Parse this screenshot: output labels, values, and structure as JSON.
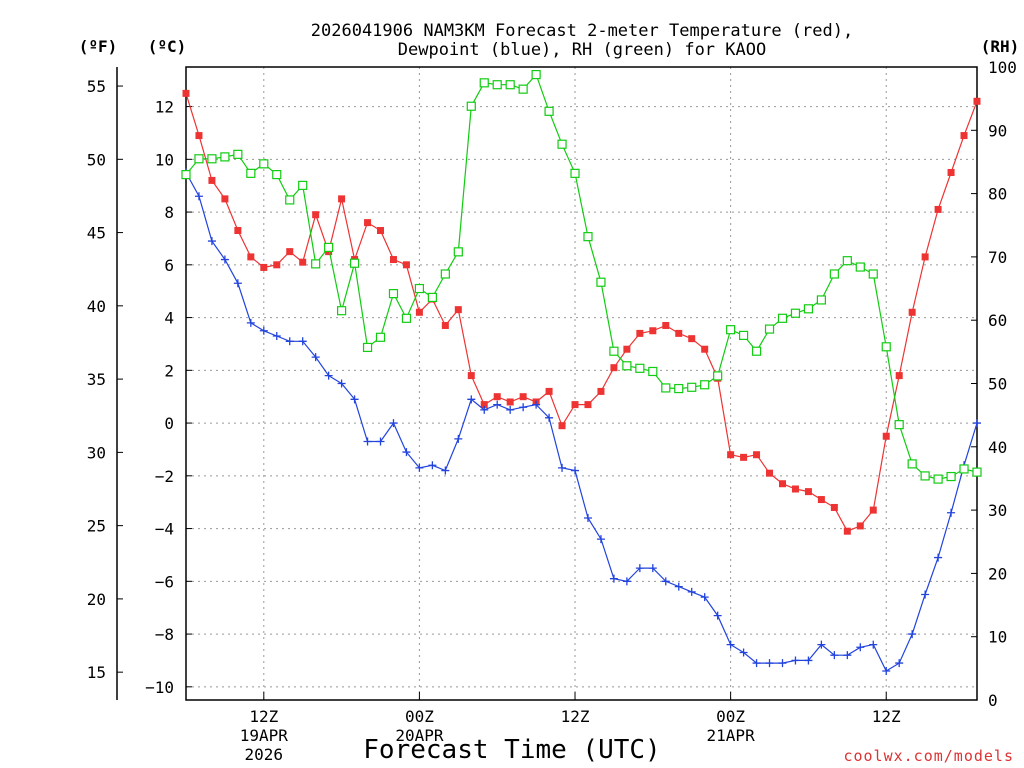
{
  "title": {
    "line1": "2026041906 NAM3KM Forecast 2-meter Temperature (red),",
    "line2": "Dewpoint (blue), RH (green) for KAOO"
  },
  "units": {
    "fahrenheit": "(ºF)",
    "celsius": "(ºC)",
    "rh": "(RH)"
  },
  "credit": "coolwx.com/models",
  "colors": {
    "temperature": "#ee3333",
    "dewpoint": "#2244dd",
    "rh": "#11cc11",
    "grid": "#999999"
  },
  "chart_data": {
    "type": "line",
    "title": "2026041906 NAM3KM Forecast 2-meter Temperature (red), Dewpoint (blue), RH (green) for KAOO",
    "xlabel": "Forecast Time (UTC)",
    "x_unit": "forecast hour from 2026041906",
    "xlim": [
      0,
      61
    ],
    "x_ticks": [
      {
        "hour": 6,
        "label": "12Z",
        "sub1": "19APR",
        "sub2": "2026"
      },
      {
        "hour": 18,
        "label": "00Z",
        "sub1": "20APR",
        "sub2": ""
      },
      {
        "hour": 30,
        "label": "12Z",
        "sub1": "",
        "sub2": ""
      },
      {
        "hour": 42,
        "label": "00Z",
        "sub1": "21APR",
        "sub2": ""
      },
      {
        "hour": 54,
        "label": "12Z",
        "sub1": "",
        "sub2": ""
      }
    ],
    "y_left_celsius": {
      "label": "(ºC)",
      "ylim": [
        -10.5,
        13.5
      ],
      "ticks": [
        -10,
        -8,
        -6,
        -4,
        -2,
        0,
        2,
        4,
        6,
        8,
        10,
        12
      ]
    },
    "y_left_fahrenheit": {
      "label": "(ºF)",
      "ticks": [
        15,
        20,
        25,
        30,
        35,
        40,
        45,
        50,
        55
      ]
    },
    "y_right_rh": {
      "label": "(RH)",
      "ylim": [
        0,
        100
      ],
      "ticks": [
        0,
        10,
        20,
        30,
        40,
        50,
        60,
        70,
        80,
        90,
        100
      ]
    },
    "series": [
      {
        "name": "Temperature",
        "unit": "C",
        "marker": "square-filled",
        "x": [
          0,
          1,
          2,
          3,
          4,
          5,
          6,
          7,
          8,
          9,
          10,
          11,
          12,
          13,
          14,
          15,
          16,
          17,
          18,
          19,
          20,
          21,
          22,
          23,
          24,
          25,
          26,
          27,
          28,
          29,
          30,
          31,
          32,
          33,
          34,
          35,
          36,
          37,
          38,
          39,
          40,
          41,
          42,
          43,
          44,
          45,
          46,
          47,
          48,
          49,
          50,
          51,
          52,
          53,
          54,
          55,
          56,
          57,
          58,
          59,
          60,
          61
        ],
        "values": [
          12.5,
          10.9,
          9.2,
          8.5,
          7.3,
          6.3,
          5.9,
          6.0,
          6.5,
          6.1,
          7.9,
          6.5,
          8.5,
          6.2,
          7.6,
          7.3,
          6.2,
          6.0,
          4.2,
          4.7,
          3.7,
          4.3,
          1.8,
          0.7,
          1.0,
          0.8,
          1.0,
          0.8,
          1.2,
          -0.1,
          0.7,
          0.7,
          1.2,
          2.1,
          2.8,
          3.4,
          3.5,
          3.7,
          3.4,
          3.2,
          2.8,
          1.7,
          -1.2,
          -1.3,
          -1.2,
          -1.9,
          -2.3,
          -2.5,
          -2.6,
          -2.9,
          -3.2,
          -4.1,
          -3.9,
          -3.3,
          -0.5,
          1.8,
          4.2,
          6.3,
          8.1,
          9.5,
          10.9,
          12.2
        ]
      },
      {
        "name": "Dewpoint",
        "unit": "C",
        "marker": "plus",
        "x": [
          0,
          1,
          2,
          3,
          4,
          5,
          6,
          7,
          8,
          9,
          10,
          11,
          12,
          13,
          14,
          15,
          16,
          17,
          18,
          19,
          20,
          21,
          22,
          23,
          24,
          25,
          26,
          27,
          28,
          29,
          30,
          31,
          32,
          33,
          34,
          35,
          36,
          37,
          38,
          39,
          40,
          41,
          42,
          43,
          44,
          45,
          46,
          47,
          48,
          49,
          50,
          51,
          52,
          53,
          54,
          55,
          56,
          57,
          58,
          59,
          60,
          61
        ],
        "values": [
          9.5,
          8.6,
          6.9,
          6.2,
          5.3,
          3.8,
          3.5,
          3.3,
          3.1,
          3.1,
          2.5,
          1.8,
          1.5,
          0.9,
          -0.7,
          -0.7,
          0.0,
          -1.1,
          -1.7,
          -1.6,
          -1.8,
          -0.6,
          0.9,
          0.5,
          0.7,
          0.5,
          0.6,
          0.7,
          0.2,
          -1.7,
          -1.8,
          -3.6,
          -4.4,
          -5.9,
          -6.0,
          -5.5,
          -5.5,
          -6.0,
          -6.2,
          -6.4,
          -6.6,
          -7.3,
          -8.4,
          -8.7,
          -9.1,
          -9.1,
          -9.1,
          -9.0,
          -9.0,
          -8.4,
          -8.8,
          -8.8,
          -8.5,
          -8.4,
          -9.4,
          -9.1,
          -8.0,
          -6.5,
          -5.1,
          -3.4,
          -1.6,
          0.0
        ]
      },
      {
        "name": "RH",
        "unit": "%",
        "marker": "square-open",
        "x": [
          0,
          1,
          2,
          3,
          4,
          5,
          6,
          7,
          8,
          9,
          10,
          11,
          12,
          13,
          14,
          15,
          16,
          17,
          18,
          19,
          20,
          21,
          22,
          23,
          24,
          25,
          26,
          27,
          28,
          29,
          30,
          31,
          32,
          33,
          34,
          35,
          36,
          37,
          38,
          39,
          40,
          41,
          42,
          43,
          44,
          45,
          46,
          47,
          48,
          49,
          50,
          51,
          52,
          53,
          54,
          55,
          56,
          57,
          58,
          59,
          60,
          61
        ],
        "values": [
          83,
          85.5,
          85.5,
          85.8,
          86.2,
          83.2,
          84.7,
          83,
          79,
          81.3,
          68.9,
          71.5,
          61.5,
          69,
          55.7,
          57.3,
          64.2,
          60.3,
          65,
          63.6,
          67.3,
          70.8,
          93.8,
          97.5,
          97.2,
          97.2,
          96.5,
          98.8,
          93,
          87.8,
          83.2,
          73.2,
          66,
          55.1,
          52.8,
          52.4,
          51.9,
          49.3,
          49.2,
          49.4,
          49.8,
          51.2,
          58.5,
          57.6,
          55.1,
          58.6,
          60.3,
          61.1,
          61.8,
          63.2,
          67.3,
          69.4,
          68.4,
          67.3,
          55.8,
          43.5,
          37.3,
          35.4,
          34.9,
          35.3,
          36.5,
          36
        ]
      }
    ]
  }
}
